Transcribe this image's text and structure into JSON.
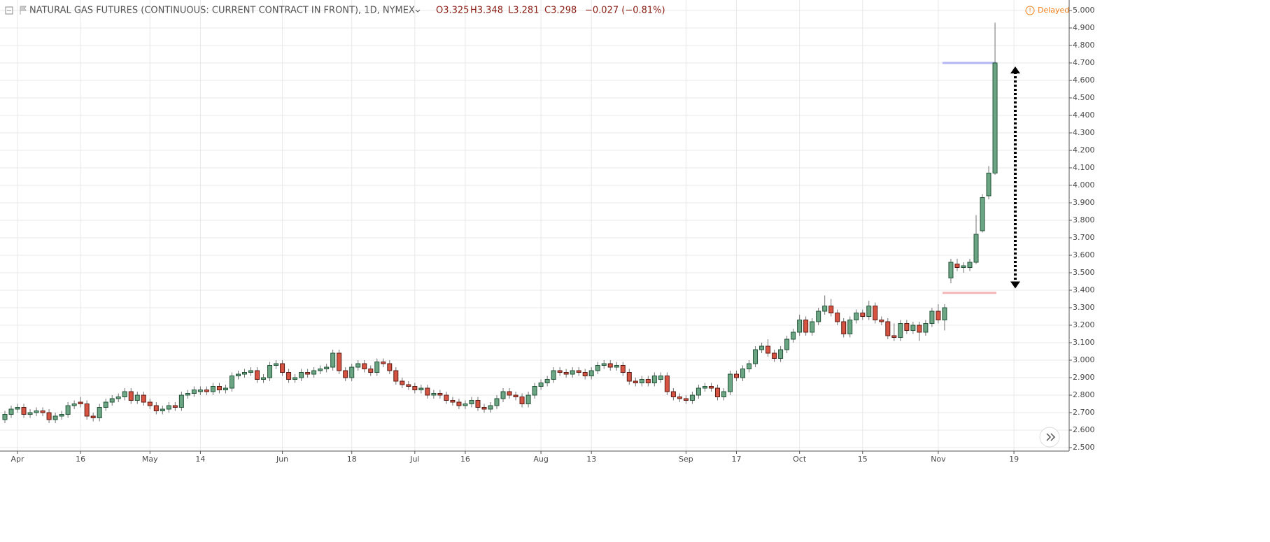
{
  "chart_data": {
    "type": "candlestick",
    "title": "NATURAL GAS FUTURES (CONTINUOUS: CURRENT CONTRACT IN FRONT), 1D, NYMEX",
    "quote": [
      "O3.325",
      "H3.348",
      "L3.281",
      "C3.298",
      "−0.027 (−0.81%)"
    ],
    "status": "Delayed",
    "up_color": "#6ba583",
    "down_color": "#d75442",
    "ylim": [
      2.5,
      5.0
    ],
    "yticks": [
      {
        "value": 2.5,
        "label": "2.500"
      },
      {
        "value": 2.6,
        "label": "2.600"
      },
      {
        "value": 2.7,
        "label": "2.700"
      },
      {
        "value": 2.8,
        "label": "2.800"
      },
      {
        "value": 2.9,
        "label": "2.900"
      },
      {
        "value": 3.0,
        "label": "3.000"
      },
      {
        "value": 3.1,
        "label": "3.100"
      },
      {
        "value": 3.2,
        "label": "3.200"
      },
      {
        "value": 3.3,
        "label": "3.300"
      },
      {
        "value": 3.4,
        "label": "3.400"
      },
      {
        "value": 3.5,
        "label": "3.500"
      },
      {
        "value": 3.6,
        "label": "3.600"
      },
      {
        "value": 3.7,
        "label": "3.700"
      },
      {
        "value": 3.8,
        "label": "3.800"
      },
      {
        "value": 3.9,
        "label": "3.900"
      },
      {
        "value": 4.0,
        "label": "4.000"
      },
      {
        "value": 4.1,
        "label": "4.100"
      },
      {
        "value": 4.2,
        "label": "4.200"
      },
      {
        "value": 4.3,
        "label": "4.300"
      },
      {
        "value": 4.4,
        "label": "4.400"
      },
      {
        "value": 4.5,
        "label": "4.500"
      },
      {
        "value": 4.6,
        "label": "4.600"
      },
      {
        "value": 4.7,
        "label": "4.700"
      },
      {
        "value": 4.8,
        "label": "4.800"
      },
      {
        "value": 4.9,
        "label": "4.900"
      },
      {
        "value": 5.0,
        "label": "5.000"
      }
    ],
    "grid": true,
    "hlines": [
      {
        "value": 4.7,
        "color": "#b3b6f2"
      },
      {
        "value": 3.385,
        "color": "#f4b6b6"
      }
    ],
    "arrow": {
      "from": 4.68,
      "to": 3.41
    },
    "categories": [
      null,
      null,
      "Apr",
      null,
      null,
      null,
      null,
      null,
      null,
      null,
      null,
      null,
      "16",
      null,
      null,
      null,
      null,
      null,
      null,
      null,
      null,
      null,
      null,
      "May",
      null,
      null,
      null,
      null,
      null,
      null,
      null,
      "14",
      null,
      null,
      null,
      null,
      null,
      null,
      null,
      null,
      null,
      null,
      null,
      null,
      "Jun",
      null,
      null,
      null,
      null,
      null,
      null,
      null,
      null,
      null,
      null,
      "18",
      null,
      null,
      null,
      null,
      null,
      null,
      null,
      null,
      null,
      "Jul",
      null,
      null,
      null,
      null,
      null,
      null,
      null,
      "16",
      null,
      null,
      null,
      null,
      null,
      null,
      null,
      null,
      null,
      null,
      null,
      "Aug",
      null,
      null,
      null,
      null,
      null,
      null,
      null,
      "13",
      null,
      null,
      null,
      null,
      null,
      null,
      null,
      null,
      null,
      null,
      null,
      null,
      null,
      null,
      "Sep",
      null,
      null,
      null,
      null,
      null,
      null,
      null,
      "17",
      null,
      null,
      null,
      null,
      null,
      null,
      null,
      null,
      null,
      "Oct",
      null,
      null,
      null,
      null,
      null,
      null,
      null,
      null,
      null,
      "15",
      null,
      null,
      null,
      null,
      null,
      null,
      null,
      null,
      null,
      null,
      null,
      "Nov",
      null,
      null,
      null,
      null,
      null,
      null,
      null,
      null,
      null,
      null,
      null,
      "19"
    ],
    "ohlc": [
      [
        2.66,
        2.71,
        2.64,
        2.69
      ],
      [
        2.69,
        2.74,
        2.67,
        2.72
      ],
      [
        2.72,
        2.75,
        2.7,
        2.73
      ],
      [
        2.73,
        2.75,
        2.67,
        2.69
      ],
      [
        2.69,
        2.72,
        2.67,
        2.7
      ],
      [
        2.7,
        2.73,
        2.68,
        2.71
      ],
      [
        2.71,
        2.73,
        2.68,
        2.7
      ],
      [
        2.7,
        2.72,
        2.64,
        2.66
      ],
      [
        2.66,
        2.7,
        2.64,
        2.68
      ],
      [
        2.68,
        2.71,
        2.66,
        2.69
      ],
      [
        2.69,
        2.76,
        2.67,
        2.74
      ],
      [
        2.74,
        2.77,
        2.72,
        2.75
      ],
      [
        2.76,
        2.79,
        2.73,
        2.75
      ],
      [
        2.75,
        2.77,
        2.66,
        2.68
      ],
      [
        2.68,
        2.7,
        2.65,
        2.67
      ],
      [
        2.67,
        2.75,
        2.65,
        2.73
      ],
      [
        2.73,
        2.78,
        2.71,
        2.76
      ],
      [
        2.76,
        2.8,
        2.74,
        2.78
      ],
      [
        2.78,
        2.81,
        2.76,
        2.79
      ],
      [
        2.79,
        2.84,
        2.77,
        2.82
      ],
      [
        2.82,
        2.84,
        2.75,
        2.77
      ],
      [
        2.77,
        2.82,
        2.75,
        2.8
      ],
      [
        2.8,
        2.82,
        2.74,
        2.76
      ],
      [
        2.76,
        2.78,
        2.72,
        2.74
      ],
      [
        2.74,
        2.76,
        2.69,
        2.71
      ],
      [
        2.71,
        2.74,
        2.69,
        2.72
      ],
      [
        2.72,
        2.76,
        2.7,
        2.74
      ],
      [
        2.74,
        2.76,
        2.71,
        2.73
      ],
      [
        2.73,
        2.82,
        2.71,
        2.8
      ],
      [
        2.8,
        2.83,
        2.78,
        2.81
      ],
      [
        2.81,
        2.85,
        2.79,
        2.83
      ],
      [
        2.82,
        2.85,
        2.8,
        2.83
      ],
      [
        2.83,
        2.85,
        2.8,
        2.82
      ],
      [
        2.82,
        2.87,
        2.8,
        2.85
      ],
      [
        2.85,
        2.87,
        2.81,
        2.83
      ],
      [
        2.83,
        2.86,
        2.81,
        2.84
      ],
      [
        2.84,
        2.93,
        2.82,
        2.91
      ],
      [
        2.91,
        2.94,
        2.89,
        2.92
      ],
      [
        2.92,
        2.95,
        2.9,
        2.93
      ],
      [
        2.93,
        2.96,
        2.91,
        2.94
      ],
      [
        2.94,
        2.96,
        2.87,
        2.89
      ],
      [
        2.89,
        2.92,
        2.87,
        2.9
      ],
      [
        2.9,
        2.99,
        2.88,
        2.97
      ],
      [
        2.97,
        3.0,
        2.95,
        2.98
      ],
      [
        2.98,
        3.0,
        2.91,
        2.93
      ],
      [
        2.93,
        2.95,
        2.87,
        2.89
      ],
      [
        2.89,
        2.92,
        2.87,
        2.9
      ],
      [
        2.9,
        2.95,
        2.88,
        2.93
      ],
      [
        2.93,
        2.95,
        2.9,
        2.92
      ],
      [
        2.92,
        2.96,
        2.9,
        2.94
      ],
      [
        2.94,
        2.97,
        2.92,
        2.95
      ],
      [
        2.95,
        2.98,
        2.93,
        2.96
      ],
      [
        2.96,
        3.06,
        2.94,
        3.04
      ],
      [
        3.04,
        3.06,
        2.92,
        2.94
      ],
      [
        2.94,
        2.96,
        2.88,
        2.9
      ],
      [
        2.9,
        2.98,
        2.88,
        2.96
      ],
      [
        2.96,
        3.0,
        2.94,
        2.98
      ],
      [
        2.98,
        3.0,
        2.93,
        2.95
      ],
      [
        2.95,
        2.97,
        2.91,
        2.93
      ],
      [
        2.93,
        3.01,
        2.91,
        2.99
      ],
      [
        2.99,
        3.01,
        2.96,
        2.98
      ],
      [
        2.98,
        3.0,
        2.92,
        2.94
      ],
      [
        2.94,
        2.96,
        2.86,
        2.88
      ],
      [
        2.88,
        2.9,
        2.84,
        2.86
      ],
      [
        2.86,
        2.88,
        2.83,
        2.85
      ],
      [
        2.85,
        2.87,
        2.81,
        2.83
      ],
      [
        2.83,
        2.86,
        2.81,
        2.84
      ],
      [
        2.84,
        2.86,
        2.78,
        2.8
      ],
      [
        2.8,
        2.83,
        2.78,
        2.81
      ],
      [
        2.81,
        2.83,
        2.78,
        2.8
      ],
      [
        2.8,
        2.82,
        2.75,
        2.77
      ],
      [
        2.77,
        2.79,
        2.74,
        2.76
      ],
      [
        2.76,
        2.78,
        2.72,
        2.74
      ],
      [
        2.74,
        2.77,
        2.72,
        2.75
      ],
      [
        2.75,
        2.79,
        2.73,
        2.77
      ],
      [
        2.77,
        2.79,
        2.71,
        2.73
      ],
      [
        2.73,
        2.75,
        2.7,
        2.72
      ],
      [
        2.72,
        2.76,
        2.7,
        2.74
      ],
      [
        2.74,
        2.8,
        2.72,
        2.78
      ],
      [
        2.78,
        2.84,
        2.76,
        2.82
      ],
      [
        2.82,
        2.84,
        2.78,
        2.8
      ],
      [
        2.8,
        2.82,
        2.77,
        2.79
      ],
      [
        2.79,
        2.81,
        2.73,
        2.75
      ],
      [
        2.75,
        2.82,
        2.73,
        2.8
      ],
      [
        2.8,
        2.87,
        2.78,
        2.85
      ],
      [
        2.85,
        2.89,
        2.83,
        2.87
      ],
      [
        2.87,
        2.91,
        2.85,
        2.89
      ],
      [
        2.89,
        2.96,
        2.87,
        2.94
      ],
      [
        2.94,
        2.96,
        2.91,
        2.93
      ],
      [
        2.93,
        2.95,
        2.9,
        2.92
      ],
      [
        2.92,
        2.96,
        2.9,
        2.94
      ],
      [
        2.94,
        2.96,
        2.91,
        2.93
      ],
      [
        2.93,
        2.95,
        2.89,
        2.91
      ],
      [
        2.91,
        2.96,
        2.89,
        2.94
      ],
      [
        2.94,
        2.99,
        2.92,
        2.97
      ],
      [
        2.97,
        3.0,
        2.95,
        2.98
      ],
      [
        2.98,
        3.0,
        2.94,
        2.96
      ],
      [
        2.96,
        2.99,
        2.94,
        2.97
      ],
      [
        2.97,
        2.99,
        2.91,
        2.93
      ],
      [
        2.93,
        2.95,
        2.86,
        2.88
      ],
      [
        2.88,
        2.9,
        2.85,
        2.87
      ],
      [
        2.87,
        2.91,
        2.85,
        2.89
      ],
      [
        2.89,
        2.91,
        2.85,
        2.87
      ],
      [
        2.87,
        2.93,
        2.85,
        2.91
      ],
      [
        2.89,
        2.93,
        2.87,
        2.91
      ],
      [
        2.91,
        2.93,
        2.8,
        2.82
      ],
      [
        2.82,
        2.84,
        2.77,
        2.79
      ],
      [
        2.79,
        2.81,
        2.76,
        2.78
      ],
      [
        2.78,
        2.8,
        2.75,
        2.77
      ],
      [
        2.77,
        2.82,
        2.75,
        2.8
      ],
      [
        2.8,
        2.86,
        2.78,
        2.84
      ],
      [
        2.84,
        2.87,
        2.82,
        2.85
      ],
      [
        2.85,
        2.87,
        2.82,
        2.84
      ],
      [
        2.84,
        2.86,
        2.77,
        2.79
      ],
      [
        2.79,
        2.84,
        2.77,
        2.82
      ],
      [
        2.82,
        2.94,
        2.8,
        2.92
      ],
      [
        2.92,
        2.94,
        2.88,
        2.9
      ],
      [
        2.9,
        2.97,
        2.88,
        2.95
      ],
      [
        2.95,
        3.0,
        2.93,
        2.98
      ],
      [
        2.98,
        3.08,
        2.96,
        3.06
      ],
      [
        3.06,
        3.1,
        3.04,
        3.08
      ],
      [
        3.08,
        3.12,
        3.02,
        3.04
      ],
      [
        3.04,
        3.06,
        2.99,
        3.01
      ],
      [
        3.01,
        3.08,
        2.99,
        3.06
      ],
      [
        3.06,
        3.14,
        3.04,
        3.12
      ],
      [
        3.12,
        3.18,
        3.1,
        3.16
      ],
      [
        3.16,
        3.26,
        3.14,
        3.23
      ],
      [
        3.23,
        3.25,
        3.14,
        3.16
      ],
      [
        3.16,
        3.24,
        3.14,
        3.22
      ],
      [
        3.22,
        3.3,
        3.2,
        3.28
      ],
      [
        3.28,
        3.37,
        3.26,
        3.31
      ],
      [
        3.31,
        3.35,
        3.25,
        3.27
      ],
      [
        3.27,
        3.29,
        3.2,
        3.22
      ],
      [
        3.22,
        3.24,
        3.13,
        3.15
      ],
      [
        3.15,
        3.25,
        3.13,
        3.23
      ],
      [
        3.23,
        3.29,
        3.21,
        3.27
      ],
      [
        3.27,
        3.29,
        3.23,
        3.25
      ],
      [
        3.25,
        3.34,
        3.23,
        3.31
      ],
      [
        3.31,
        3.33,
        3.21,
        3.23
      ],
      [
        3.23,
        3.25,
        3.2,
        3.22
      ],
      [
        3.22,
        3.24,
        3.12,
        3.14
      ],
      [
        3.14,
        3.21,
        3.11,
        3.13
      ],
      [
        3.13,
        3.23,
        3.11,
        3.21
      ],
      [
        3.21,
        3.23,
        3.15,
        3.17
      ],
      [
        3.17,
        3.22,
        3.15,
        3.2
      ],
      [
        3.2,
        3.22,
        3.11,
        3.16
      ],
      [
        3.16,
        3.23,
        3.14,
        3.21
      ],
      [
        3.21,
        3.3,
        3.19,
        3.28
      ],
      [
        3.28,
        3.32,
        3.21,
        3.23
      ],
      [
        3.23,
        3.32,
        3.17,
        3.3
      ],
      [
        3.47,
        3.58,
        3.44,
        3.56
      ],
      [
        3.55,
        3.58,
        3.51,
        3.53
      ],
      [
        3.53,
        3.56,
        3.5,
        3.54
      ],
      [
        3.53,
        3.58,
        3.51,
        3.56
      ],
      [
        3.56,
        3.83,
        3.55,
        3.72
      ],
      [
        3.74,
        3.95,
        3.73,
        3.93
      ],
      [
        3.94,
        4.11,
        3.92,
        4.07
      ],
      [
        4.07,
        4.93,
        4.06,
        4.7
      ],
      null,
      null,
      null
    ]
  }
}
